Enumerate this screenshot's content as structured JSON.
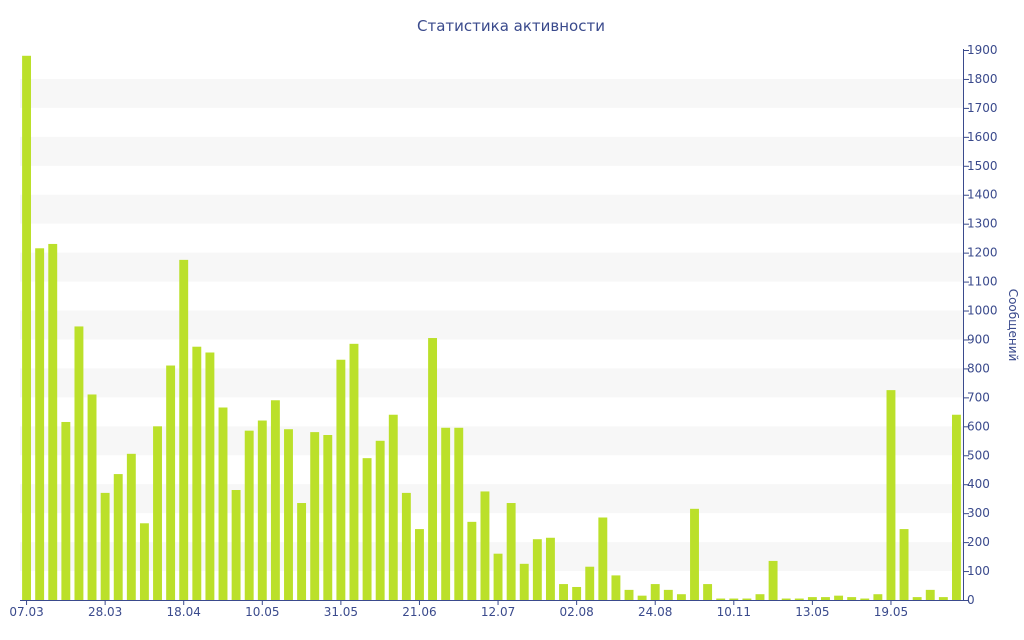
{
  "chart_data": {
    "type": "bar",
    "title": "Статистика активности",
    "xlabel": "",
    "ylabel": "Сообщений",
    "y_axis_side": "right",
    "ylim": [
      0,
      1900
    ],
    "y_ticks": [
      0,
      100,
      200,
      300,
      400,
      500,
      600,
      700,
      800,
      900,
      1000,
      1100,
      1200,
      1300,
      1400,
      1500,
      1600,
      1700,
      1800,
      1900
    ],
    "x_tick_labels": [
      {
        "index": 0,
        "label": "07.03"
      },
      {
        "index": 6,
        "label": "28.03"
      },
      {
        "index": 12,
        "label": "18.04"
      },
      {
        "index": 18,
        "label": "10.05"
      },
      {
        "index": 24,
        "label": "31.05"
      },
      {
        "index": 30,
        "label": "21.06"
      },
      {
        "index": 36,
        "label": "12.07"
      },
      {
        "index": 42,
        "label": "02.08"
      },
      {
        "index": 48,
        "label": "24.08"
      },
      {
        "index": 54,
        "label": "10.11"
      },
      {
        "index": 60,
        "label": "13.05"
      },
      {
        "index": 66,
        "label": "19.05"
      }
    ],
    "values": [
      1880,
      1215,
      1230,
      615,
      945,
      710,
      370,
      435,
      505,
      265,
      600,
      810,
      1175,
      875,
      855,
      665,
      380,
      585,
      620,
      690,
      590,
      335,
      580,
      570,
      830,
      885,
      490,
      550,
      640,
      370,
      245,
      905,
      595,
      595,
      270,
      375,
      160,
      335,
      125,
      210,
      215,
      55,
      45,
      115,
      285,
      85,
      35,
      15,
      55,
      35,
      20,
      315,
      55,
      5,
      5,
      5,
      20,
      135,
      5,
      5,
      10,
      10,
      15,
      10,
      5,
      20,
      725,
      245,
      10,
      35,
      10,
      640
    ],
    "colors": {
      "bar": "#bbe02a",
      "band": "#f7f7f7",
      "axis": "#3a4a8c",
      "text": "#3a4a8c"
    },
    "grid": "alternating bands"
  }
}
